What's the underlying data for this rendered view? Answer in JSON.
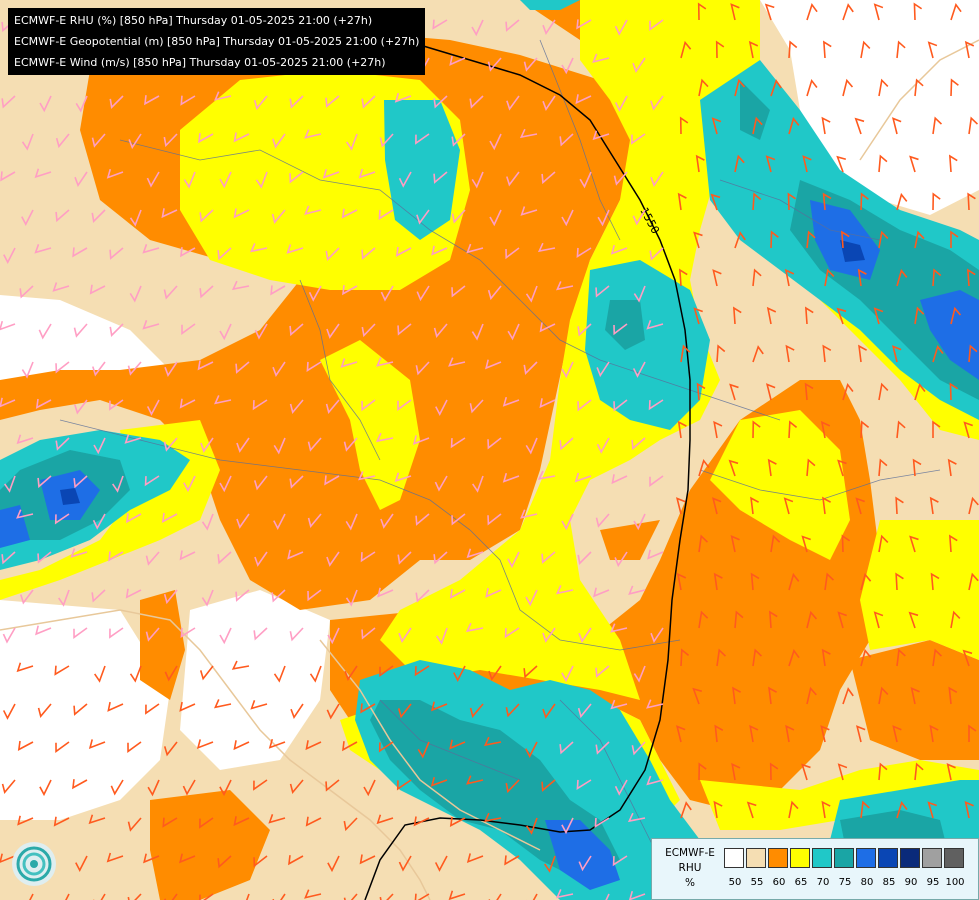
{
  "titles": {
    "line1": "ECMWF-E RHU (%) [850 hPa] Thursday 01-05-2025 21:00 (+27h)",
    "line2": "ECMWF-E Geopotential (m) [850 hPa] Thursday 01-05-2025 21:00 (+27h)",
    "line3": "ECMWF-E Wind (m/s) [850 hPa] Thursday 01-05-2025 21:00 (+27h)"
  },
  "contour_label": "1550",
  "legend": {
    "name_line1": "ECMWF-E",
    "name_line2": "RHU",
    "unit": "%",
    "colors": [
      "#ffffff",
      "#f5deb3",
      "#ff8c00",
      "#ffff00",
      "#20c8c8",
      "#1aa5a5",
      "#1e6ee6",
      "#0a46b4",
      "#0a2a7a",
      "#a0a0a0",
      "#606060"
    ],
    "ticks": [
      "50",
      "55",
      "60",
      "65",
      "70",
      "75",
      "80",
      "85",
      "90",
      "95",
      "100"
    ]
  },
  "logo_icon": "ecmwf-swirl-icon"
}
